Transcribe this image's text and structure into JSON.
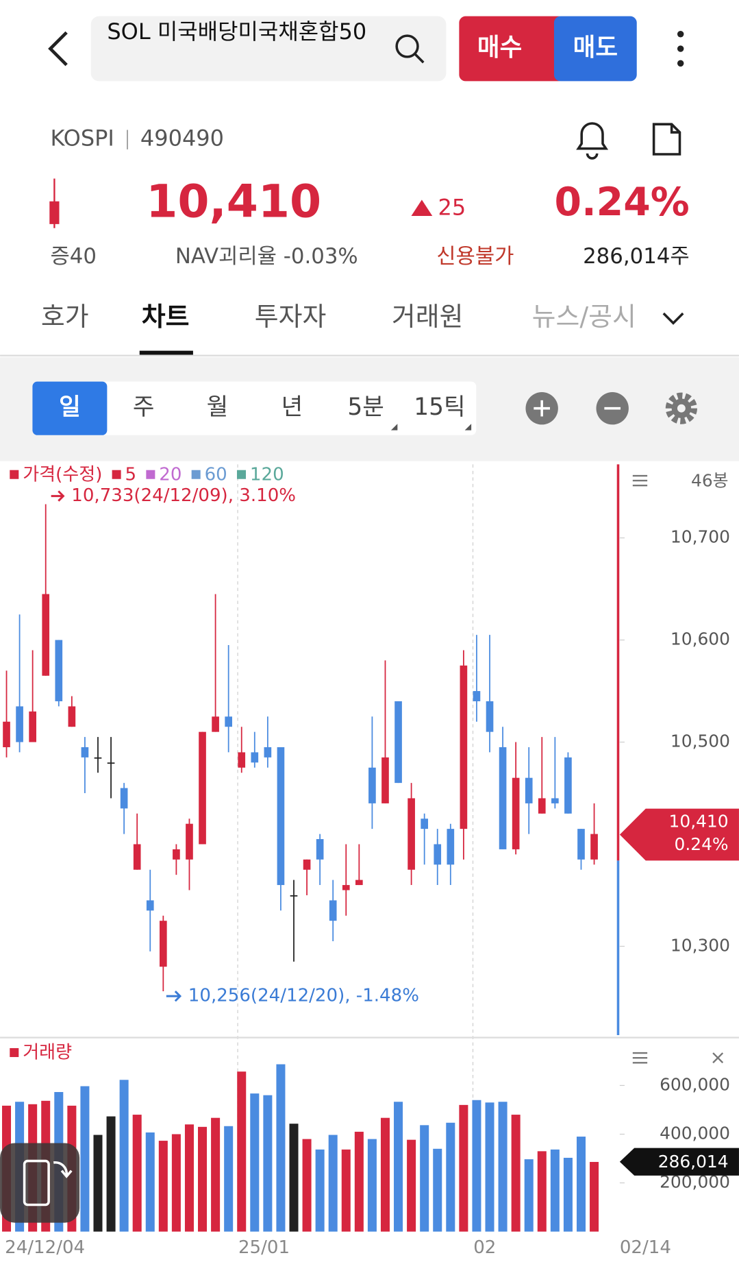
{
  "header": {
    "search": "SOL 미국배당미국채혼합50",
    "buy": "매수",
    "sell": "매도"
  },
  "info": {
    "market": "KOSPI",
    "code": "490490",
    "price": "10,410",
    "change": "25",
    "change_rate": "0.24%",
    "margin": "증40",
    "nav_gap": "NAV괴리율 -0.03%",
    "credit": "신용불가",
    "volume": "286,014주"
  },
  "tabs": [
    "호가",
    "차트",
    "투자자",
    "거래원",
    "뉴스/공시"
  ],
  "periods": [
    "일",
    "주",
    "월",
    "년",
    "5분",
    "15틱"
  ],
  "chart_data": [
    {
      "type": "candlestick",
      "legend": [
        {
          "name": "가격(수정)",
          "color": "#d6263f"
        },
        {
          "name": "5",
          "color": "#d6263f"
        },
        {
          "name": "20",
          "color": "#c06ad0"
        },
        {
          "name": "60",
          "color": "#6b9bd2"
        },
        {
          "name": "120",
          "color": "#5aa89a"
        }
      ],
      "count_label": "46봉",
      "max_label": "10,733(24/12/09), 3.10%",
      "min_label": "10,256(24/12/20), -1.48%",
      "up_color": "#d6263f",
      "down_color": "#4a8be0",
      "flat_color": "#222222",
      "open": [
        10495,
        10535,
        10500,
        10565,
        10600,
        10515,
        10495,
        10485,
        10480,
        10455,
        10375,
        10345,
        10280,
        10385,
        10385,
        10400,
        10510,
        10525,
        10475,
        10490,
        10495,
        10495,
        10350,
        10375,
        10405,
        10345,
        10355,
        10360,
        10475,
        10440,
        10540,
        10375,
        10425,
        10400,
        10415,
        10415,
        10550,
        10540,
        10495,
        10395,
        10465,
        10430,
        10445,
        10485,
        10415,
        10385
      ],
      "high": [
        10570,
        10625,
        10590,
        10733,
        10600,
        10545,
        10505,
        10505,
        10505,
        10460,
        10430,
        10375,
        10330,
        10400,
        10425,
        10510,
        10645,
        10595,
        10515,
        10510,
        10525,
        10495,
        10365,
        10385,
        10410,
        10365,
        10400,
        10400,
        10525,
        10580,
        10540,
        10460,
        10430,
        10415,
        10420,
        10590,
        10605,
        10605,
        10515,
        10500,
        10495,
        10505,
        10505,
        10490,
        10415,
        10440
      ],
      "low": [
        10485,
        10490,
        10500,
        10565,
        10535,
        10515,
        10450,
        10470,
        10445,
        10410,
        10375,
        10295,
        10256,
        10370,
        10355,
        10400,
        10510,
        10490,
        10470,
        10475,
        10475,
        10335,
        10285,
        10350,
        10360,
        10305,
        10330,
        10360,
        10415,
        10440,
        10460,
        10360,
        10380,
        10360,
        10360,
        10385,
        10520,
        10490,
        10395,
        10390,
        10410,
        10430,
        10435,
        10430,
        10375,
        10380
      ],
      "close": [
        10520,
        10500,
        10530,
        10645,
        10540,
        10535,
        10485,
        10485,
        10480,
        10435,
        10400,
        10335,
        10325,
        10395,
        10420,
        10510,
        10525,
        10515,
        10490,
        10480,
        10485,
        10360,
        10350,
        10385,
        10385,
        10325,
        10360,
        10365,
        10440,
        10485,
        10460,
        10445,
        10415,
        10380,
        10380,
        10575,
        10540,
        10510,
        10395,
        10465,
        10440,
        10445,
        10440,
        10430,
        10385,
        10410
      ],
      "ylim": [
        10213,
        10772
      ],
      "yticks": [
        {
          "value": 10300,
          "label": "10,300"
        },
        {
          "value": 10500,
          "label": "10,500"
        },
        {
          "value": 10600,
          "label": "10,600"
        },
        {
          "value": 10700,
          "label": "10,700"
        }
      ],
      "last_date": "02/14"
    },
    {
      "type": "bar",
      "legend": [
        {
          "name": "거래량",
          "color": "#d6263f"
        }
      ],
      "categories": [
        "24/12/04",
        null,
        null,
        null,
        null,
        null,
        null,
        null,
        null,
        null,
        null,
        null,
        null,
        null,
        null,
        null,
        null,
        null,
        "25/01",
        null,
        null,
        null,
        null,
        null,
        null,
        null,
        null,
        null,
        null,
        null,
        null,
        null,
        null,
        null,
        null,
        null,
        "02",
        null,
        null,
        null,
        null,
        null,
        null,
        null,
        null,
        null
      ],
      "values": [
        517000,
        533000,
        523000,
        537000,
        573000,
        517000,
        597000,
        397000,
        473000,
        623000,
        480000,
        407000,
        373000,
        400000,
        440000,
        430000,
        467000,
        433000,
        657000,
        567000,
        560000,
        687000,
        443000,
        380000,
        337000,
        397000,
        337000,
        410000,
        380000,
        467000,
        533000,
        377000,
        437000,
        340000,
        447000,
        520000,
        540000,
        530000,
        533000,
        480000,
        297000,
        330000,
        337000,
        303000,
        390000,
        286014
      ],
      "last_label": "286,014",
      "ylim": [
        0,
        790000
      ],
      "yticks": [
        {
          "value": 200000,
          "label": "200,000"
        },
        {
          "value": 400000,
          "label": "400,000"
        },
        {
          "value": 600000,
          "label": "600,000"
        }
      ]
    }
  ]
}
